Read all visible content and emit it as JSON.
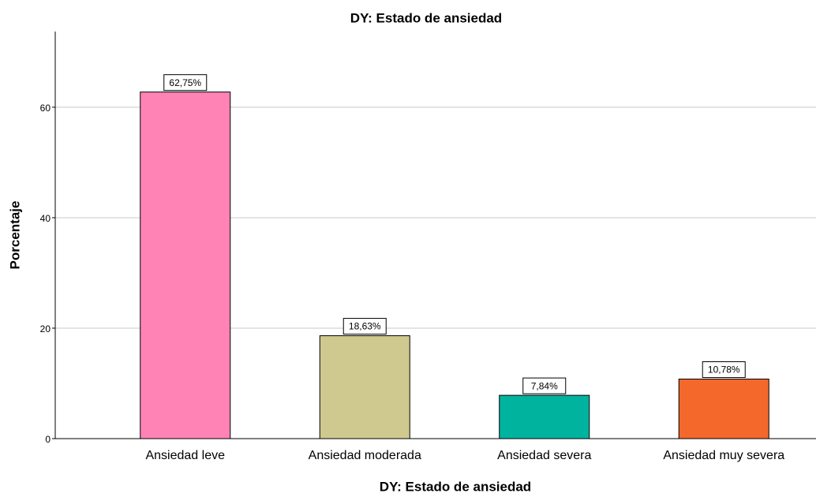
{
  "chart_data": {
    "type": "bar",
    "title": "DY: Estado de ansiedad",
    "x_label": "DY: Estado de ansiedad",
    "y_label": "Porcentaje",
    "categories": [
      "Ansiedad leve",
      "Ansiedad moderada",
      "Ansiedad severa",
      "Ansiedad muy severa"
    ],
    "values": [
      62.75,
      18.63,
      7.84,
      10.78
    ],
    "value_labels": [
      "62,75%",
      "18,63%",
      "7,84%",
      "10,78%"
    ],
    "colors": [
      "#ff83b5",
      "#cfc990",
      "#00b39f",
      "#f4682c"
    ],
    "ylim": [
      0,
      73.7
    ],
    "yticks": [
      0,
      20,
      40,
      60
    ],
    "grid": true
  }
}
